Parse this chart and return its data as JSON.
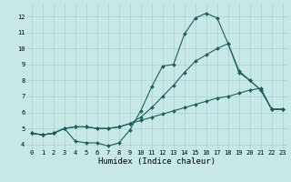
{
  "xlabel": "Humidex (Indice chaleur)",
  "bg_color": "#c8e8e8",
  "grid_color": "#a8d0d0",
  "line_color": "#1a5f5f",
  "xlim": [
    -0.5,
    23.5
  ],
  "ylim": [
    3.7,
    12.8
  ],
  "xticks": [
    0,
    1,
    2,
    3,
    4,
    5,
    6,
    7,
    8,
    9,
    10,
    11,
    12,
    13,
    14,
    15,
    16,
    17,
    18,
    19,
    20,
    21,
    22,
    23
  ],
  "yticks": [
    4,
    5,
    6,
    7,
    8,
    9,
    10,
    11,
    12
  ],
  "line1_x": [
    0,
    1,
    2,
    3,
    4,
    5,
    6,
    7,
    8,
    9,
    10,
    11,
    12,
    13,
    14,
    15,
    16,
    17,
    18,
    19,
    20,
    21,
    22,
    23
  ],
  "line1_y": [
    4.7,
    4.6,
    4.7,
    5.0,
    4.2,
    4.1,
    4.1,
    3.9,
    4.1,
    4.9,
    6.1,
    7.6,
    8.9,
    9.0,
    10.9,
    11.9,
    12.2,
    11.9,
    10.3,
    8.6,
    8.0,
    7.4,
    6.2,
    6.2
  ],
  "line2_x": [
    0,
    1,
    2,
    3,
    4,
    5,
    6,
    7,
    8,
    9,
    10,
    11,
    12,
    13,
    14,
    15,
    16,
    17,
    18,
    19,
    20,
    21,
    22,
    23
  ],
  "line2_y": [
    4.7,
    4.6,
    4.7,
    5.0,
    5.1,
    5.1,
    5.0,
    5.0,
    5.1,
    5.3,
    5.5,
    5.7,
    5.9,
    6.1,
    6.3,
    6.5,
    6.7,
    6.9,
    7.0,
    7.2,
    7.4,
    7.5,
    6.2,
    6.2
  ],
  "line3_x": [
    0,
    1,
    2,
    3,
    4,
    5,
    6,
    7,
    8,
    9,
    10,
    11,
    12,
    13,
    14,
    15,
    16,
    17,
    18,
    19,
    20,
    21,
    22,
    23
  ],
  "line3_y": [
    4.7,
    4.6,
    4.7,
    5.0,
    5.1,
    5.1,
    5.0,
    5.0,
    5.1,
    5.3,
    5.7,
    6.3,
    7.0,
    7.7,
    8.5,
    9.2,
    9.6,
    10.0,
    10.3,
    8.5,
    8.0,
    7.4,
    6.2,
    6.2
  ],
  "tick_fontsize": 5.0,
  "xlabel_fontsize": 6.5,
  "marker_size": 2.0,
  "line_width": 0.8
}
